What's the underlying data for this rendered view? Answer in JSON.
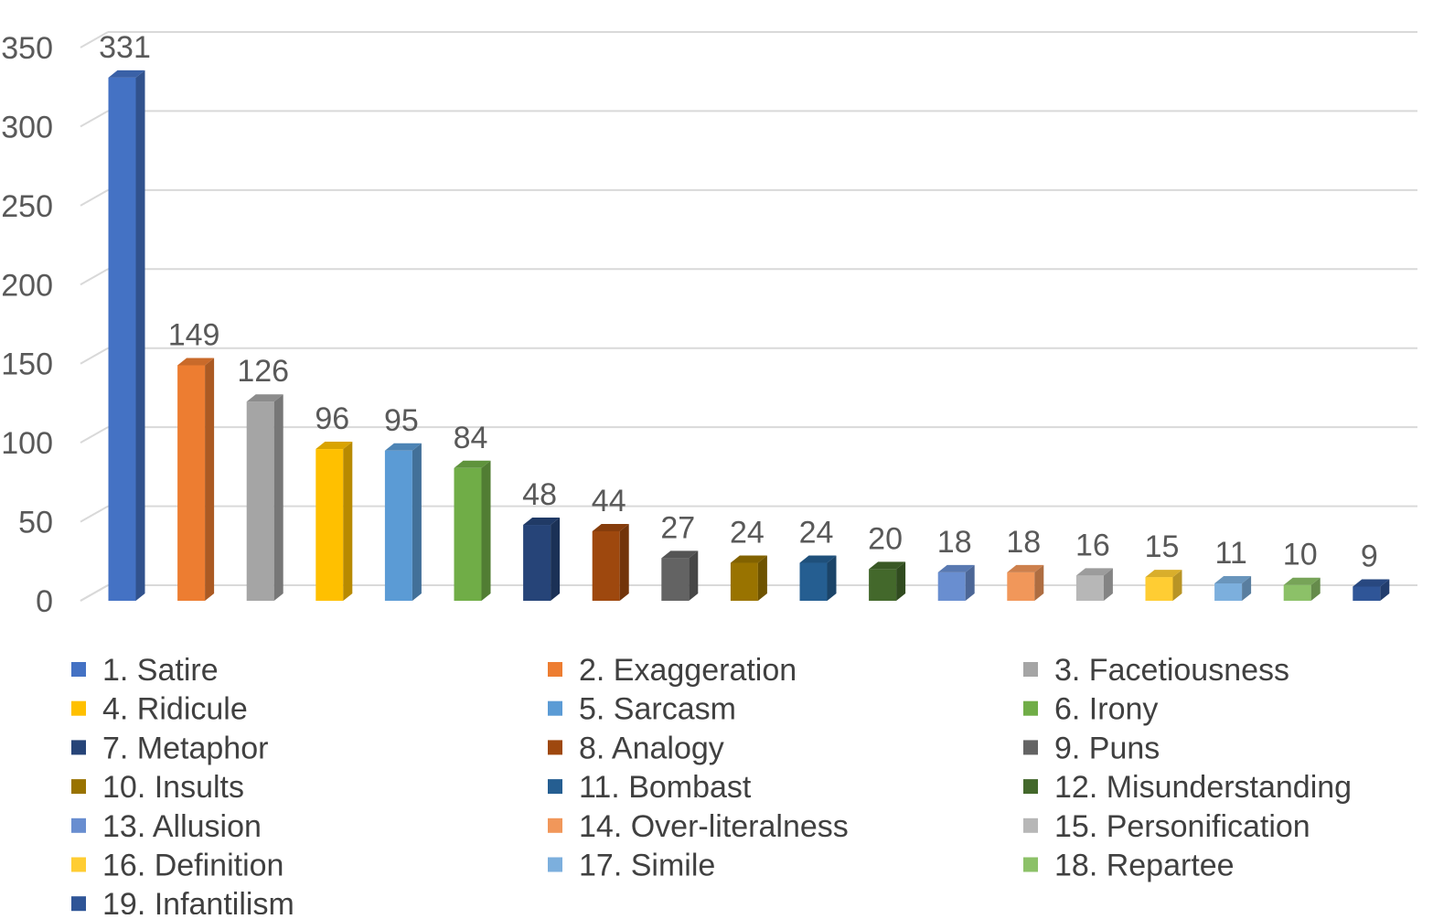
{
  "chart_data": {
    "type": "bar",
    "style": "3d-column",
    "title": "",
    "xlabel": "",
    "ylabel": "",
    "ylim": [
      0,
      350
    ],
    "y_ticks": [
      0,
      50,
      100,
      150,
      200,
      250,
      300,
      350
    ],
    "grid": "horizontal",
    "legend_position": "bottom",
    "data_labels": true,
    "categories": [
      "1. Satire",
      "2. Exaggeration",
      "3. Facetiousness",
      "4. Ridicule",
      "5. Sarcasm",
      "6. Irony",
      "7. Metaphor",
      "8. Analogy",
      "9. Puns",
      "10. Insults",
      "11. Bombast",
      "12. Misunderstanding",
      "13. Allusion",
      "14. Over-literalness",
      "15. Personification",
      "16. Definition",
      "17. Simile",
      "18. Repartee",
      "19. Infantilism"
    ],
    "values": [
      331,
      149,
      126,
      96,
      95,
      84,
      48,
      44,
      27,
      24,
      24,
      20,
      18,
      18,
      16,
      15,
      11,
      10,
      9
    ],
    "colors": [
      "#4472C4",
      "#ED7D31",
      "#A5A5A5",
      "#FFC000",
      "#5B9BD5",
      "#70AD47",
      "#264478",
      "#9E480E",
      "#636363",
      "#997300",
      "#255E91",
      "#43682B",
      "#698ED0",
      "#F1975A",
      "#B7B7B7",
      "#FFCD33",
      "#7CAFDD",
      "#8CC168",
      "#2F5597"
    ]
  }
}
